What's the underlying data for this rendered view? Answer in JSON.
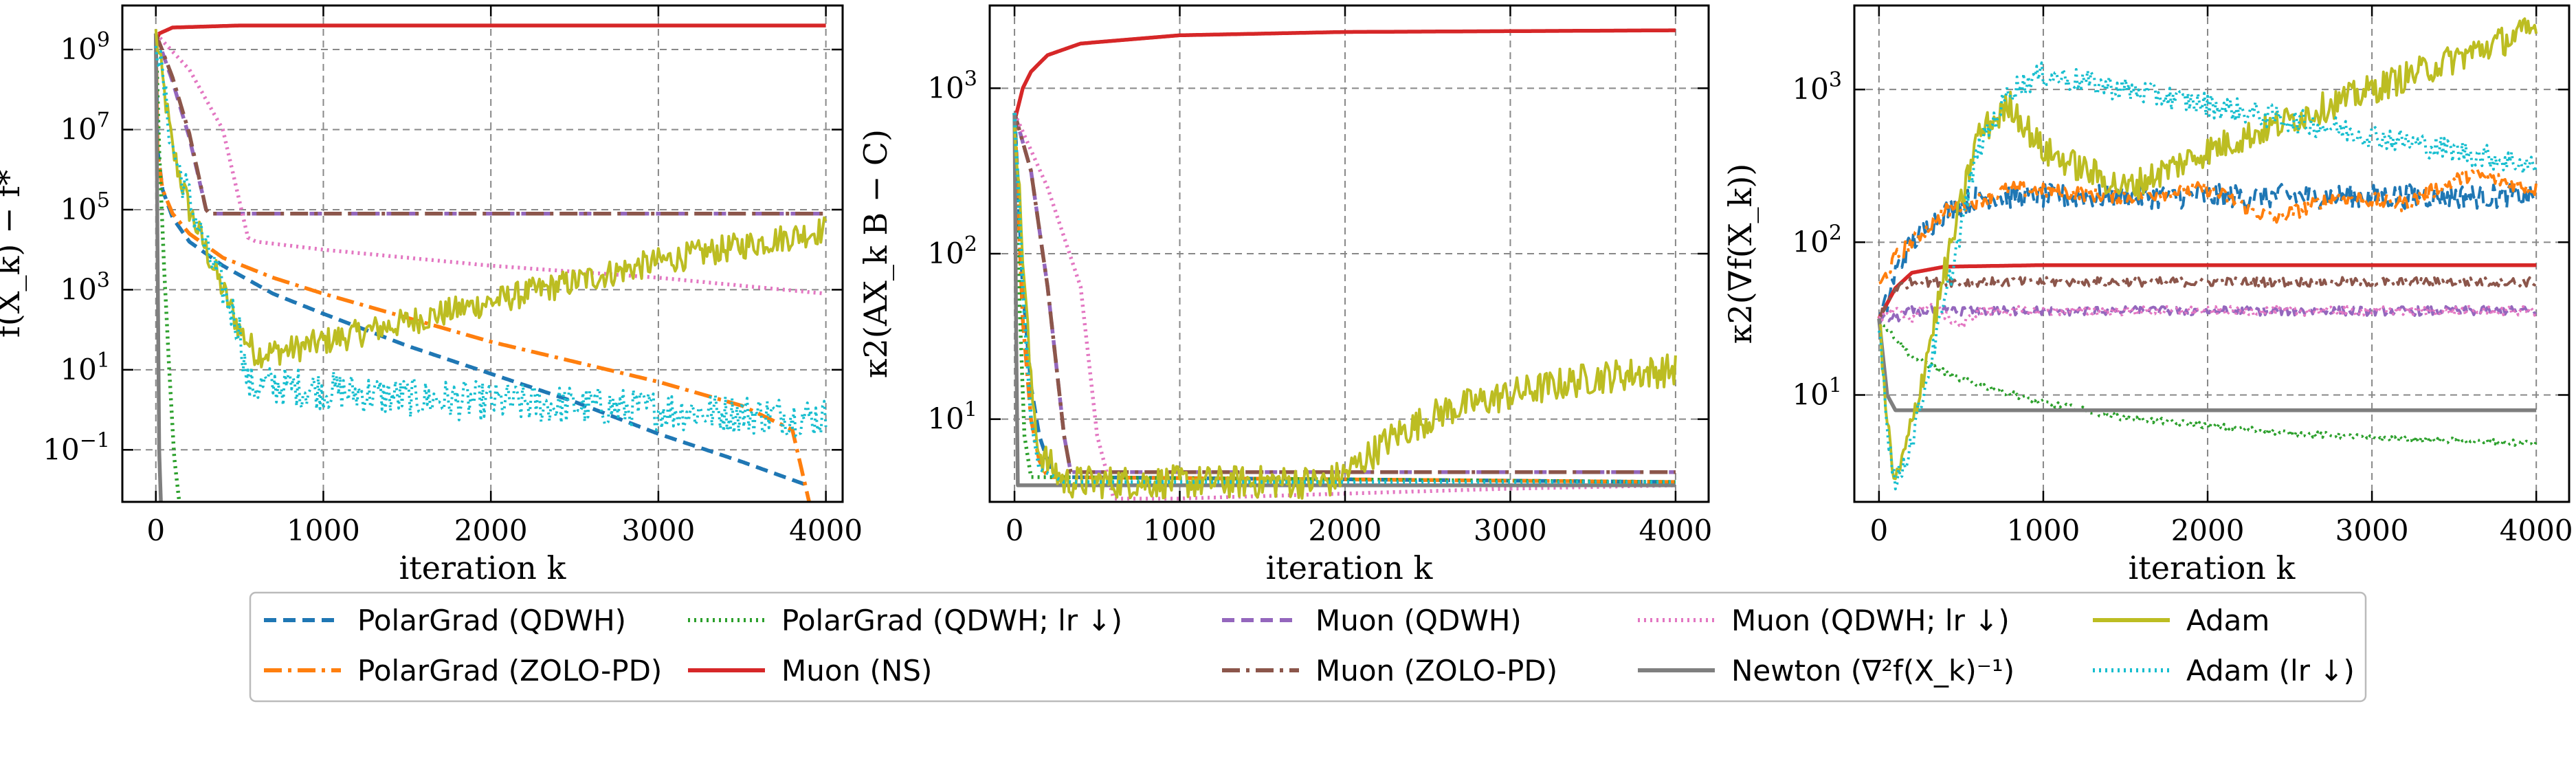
{
  "chart_data": [
    {
      "type": "line",
      "yscale": "log",
      "xlim": [
        -200,
        4100
      ],
      "ylim_exp": [
        -2.3,
        10.1
      ],
      "xticks": [
        0,
        1000,
        2000,
        3000,
        4000
      ],
      "xtick_labels": [
        "0",
        "1000",
        "2000",
        "3000",
        "4000"
      ],
      "yticks_exp": [
        -1,
        1,
        3,
        5,
        7,
        9
      ],
      "ytick_labels": [
        "10",
        "10",
        "10",
        "10",
        "10",
        "10"
      ],
      "ytick_sup": [
        "−1",
        "1",
        "3",
        "5",
        "7",
        "9"
      ],
      "xlabel": "iteration k",
      "ylabel": "f(X_k) − f*",
      "grid": true,
      "series": [
        {
          "key": "pg_qdwh",
          "x": [
            0,
            10,
            40,
            100,
            200,
            400,
            700,
            1000,
            1500,
            2000,
            2500,
            3000,
            3500,
            3900
          ],
          "log10y": [
            9.4,
            6.5,
            5.5,
            4.8,
            4.2,
            3.6,
            2.9,
            2.4,
            1.6,
            0.9,
            0.2,
            -0.6,
            -1.3,
            -1.9
          ]
        },
        {
          "key": "pg_zolo",
          "x": [
            0,
            10,
            40,
            100,
            200,
            400,
            700,
            1000,
            1500,
            2000,
            2500,
            3000,
            3500,
            3800,
            3900
          ],
          "log10y": [
            9.4,
            6.4,
            5.5,
            4.9,
            4.4,
            3.8,
            3.3,
            2.9,
            2.3,
            1.7,
            1.2,
            0.7,
            0.1,
            -0.5,
            -2.3
          ]
        },
        {
          "key": "pg_qdwh_lr",
          "x": [
            0,
            20,
            50,
            80,
            110,
            140
          ],
          "log10y": [
            9.4,
            6.5,
            3.5,
            1.0,
            -1.2,
            -2.3
          ]
        },
        {
          "key": "muon_ns",
          "x": [
            0,
            20,
            100,
            500,
            1000,
            4000
          ],
          "log10y": [
            9.2,
            9.4,
            9.55,
            9.6,
            9.6,
            9.6
          ]
        },
        {
          "key": "muon_qdwh",
          "x": [
            0,
            100,
            200,
            300,
            320,
            4000
          ],
          "log10y": [
            9.4,
            8.2,
            6.8,
            5.0,
            4.9,
            4.9
          ]
        },
        {
          "key": "muon_zolo",
          "x": [
            0,
            100,
            200,
            300,
            320,
            4000
          ],
          "log10y": [
            9.4,
            8.3,
            6.9,
            5.0,
            4.9,
            4.9
          ]
        },
        {
          "key": "muon_qdwh_lr",
          "x": [
            0,
            200,
            400,
            550,
            600,
            1000,
            2000,
            3000,
            4000
          ],
          "log10y": [
            9.4,
            8.5,
            7.0,
            4.3,
            4.2,
            4.0,
            3.6,
            3.3,
            2.9
          ]
        },
        {
          "key": "newton",
          "x": [
            0,
            10,
            20,
            30
          ],
          "log10y": [
            9.4,
            4.0,
            -1.0,
            -2.3
          ]
        },
        {
          "key": "adam",
          "x": [
            0,
            100,
            200,
            300,
            400,
            500,
            600,
            800,
            1000,
            1500,
            2000,
            2500,
            3000,
            3500,
            4000
          ],
          "log10y": [
            9.4,
            6.5,
            5.0,
            4.0,
            3.0,
            2.0,
            1.4,
            1.5,
            1.7,
            2.2,
            2.7,
            3.2,
            3.7,
            4.1,
            4.5
          ],
          "noise": 0.35
        },
        {
          "key": "adam_lr",
          "x": [
            0,
            100,
            300,
            500,
            550,
            700,
            1000,
            1500,
            2000,
            2500,
            3000,
            3500,
            4000
          ],
          "log10y": [
            9.4,
            6.5,
            4.0,
            2.0,
            0.6,
            0.6,
            0.5,
            0.3,
            0.2,
            0.1,
            0.0,
            -0.1,
            -0.2
          ],
          "noise": 0.5
        }
      ]
    },
    {
      "type": "line",
      "yscale": "log",
      "xlim": [
        -150,
        4200
      ],
      "ylim_exp": [
        0.5,
        3.5
      ],
      "xticks": [
        0,
        1000,
        2000,
        3000,
        4000
      ],
      "xtick_labels": [
        "0",
        "1000",
        "2000",
        "3000",
        "4000"
      ],
      "yticks_exp": [
        1,
        2,
        3
      ],
      "ytick_labels": [
        "10",
        "10",
        "10"
      ],
      "ytick_sup": [
        "1",
        "2",
        "3"
      ],
      "xlabel": "iteration k",
      "ylabel": "κ2(AX_k B − C)",
      "grid": true,
      "series": [
        {
          "key": "pg_qdwh",
          "x": [
            0,
            50,
            100,
            150,
            200,
            250,
            4000
          ],
          "log10y": [
            2.85,
            1.8,
            1.2,
            0.9,
            0.75,
            0.65,
            0.62
          ]
        },
        {
          "key": "pg_zolo",
          "x": [
            0,
            50,
            100,
            150,
            200,
            4000
          ],
          "log10y": [
            2.85,
            1.6,
            1.0,
            0.75,
            0.65,
            0.62
          ]
        },
        {
          "key": "pg_qdwh_lr",
          "x": [
            0,
            30,
            60,
            100,
            4000
          ],
          "log10y": [
            2.85,
            1.7,
            0.9,
            0.65,
            0.62
          ]
        },
        {
          "key": "muon_ns",
          "x": [
            0,
            50,
            100,
            200,
            400,
            1000,
            2000,
            4000
          ],
          "log10y": [
            2.8,
            3.0,
            3.1,
            3.2,
            3.27,
            3.32,
            3.34,
            3.35
          ]
        },
        {
          "key": "muon_qdwh",
          "x": [
            0,
            100,
            200,
            300,
            340,
            4000
          ],
          "log10y": [
            2.85,
            2.5,
            1.8,
            0.9,
            0.68,
            0.68
          ]
        },
        {
          "key": "muon_zolo",
          "x": [
            0,
            100,
            200,
            300,
            340,
            4000
          ],
          "log10y": [
            2.85,
            2.5,
            1.8,
            0.9,
            0.68,
            0.68
          ]
        },
        {
          "key": "muon_qdwh_lr",
          "x": [
            0,
            200,
            400,
            500,
            600,
            1000,
            2000,
            3000,
            4000
          ],
          "log10y": [
            2.85,
            2.4,
            1.8,
            0.9,
            0.52,
            0.52,
            0.55,
            0.58,
            0.6
          ]
        },
        {
          "key": "newton",
          "x": [
            0,
            10,
            20,
            4000
          ],
          "log10y": [
            2.85,
            1.5,
            0.6,
            0.6
          ]
        },
        {
          "key": "adam",
          "x": [
            0,
            50,
            100,
            150,
            300,
            1000,
            1900,
            2000,
            2300,
            2600,
            3000,
            3500,
            4000
          ],
          "log10y": [
            2.85,
            2.0,
            1.2,
            0.8,
            0.62,
            0.62,
            0.62,
            0.67,
            0.9,
            1.05,
            1.15,
            1.25,
            1.3
          ],
          "noise": 0.1
        },
        {
          "key": "adam_lr",
          "x": [
            0,
            50,
            100,
            150,
            300,
            4000
          ],
          "log10y": [
            2.85,
            1.8,
            1.0,
            0.7,
            0.62,
            0.62
          ]
        }
      ]
    },
    {
      "type": "line",
      "yscale": "log",
      "xlim": [
        -150,
        4200
      ],
      "ylim_exp": [
        0.3,
        3.55
      ],
      "xticks": [
        0,
        1000,
        2000,
        3000,
        4000
      ],
      "xtick_labels": [
        "0",
        "1000",
        "2000",
        "3000",
        "4000"
      ],
      "yticks_exp": [
        1,
        2,
        3
      ],
      "ytick_labels": [
        "10",
        "10",
        "10"
      ],
      "ytick_sup": [
        "1",
        "2",
        "3"
      ],
      "xlabel": "iteration k",
      "ylabel": "κ2(∇f(X_k))",
      "grid": true,
      "series": [
        {
          "key": "pg_qdwh",
          "x": [
            0,
            50,
            100,
            200,
            400,
            600,
            1000,
            2000,
            3000,
            4000
          ],
          "log10y": [
            1.5,
            1.6,
            1.8,
            2.0,
            2.2,
            2.3,
            2.3,
            2.3,
            2.3,
            2.3
          ],
          "noise": 0.08
        },
        {
          "key": "pg_zolo",
          "x": [
            0,
            100,
            200,
            400,
            800,
            1500,
            2000,
            2400,
            2800,
            3200,
            3600,
            4000
          ],
          "log10y": [
            1.7,
            1.9,
            2.0,
            2.2,
            2.35,
            2.3,
            2.35,
            2.15,
            2.3,
            2.25,
            2.45,
            2.35
          ],
          "noise": 0.05
        },
        {
          "key": "pg_qdwh_lr",
          "x": [
            0,
            200,
            500,
            1000,
            1500,
            2000,
            2500,
            3000,
            3500,
            4000
          ],
          "log10y": [
            1.5,
            1.25,
            1.1,
            0.95,
            0.85,
            0.8,
            0.75,
            0.72,
            0.7,
            0.68
          ],
          "noise": 0.02
        },
        {
          "key": "muon_ns",
          "x": [
            0,
            100,
            200,
            400,
            1000,
            4000
          ],
          "log10y": [
            1.5,
            1.7,
            1.8,
            1.84,
            1.85,
            1.85
          ]
        },
        {
          "key": "muon_qdwh",
          "x": [
            0,
            100,
            200,
            4000
          ],
          "log10y": [
            1.5,
            1.5,
            1.55,
            1.55
          ],
          "noise": 0.03
        },
        {
          "key": "muon_zolo",
          "x": [
            0,
            50,
            100,
            200,
            300,
            4000
          ],
          "log10y": [
            1.5,
            1.6,
            1.7,
            1.74,
            1.74,
            1.74
          ],
          "noise": 0.03
        },
        {
          "key": "muon_qdwh_lr",
          "x": [
            0,
            100,
            200,
            300,
            500,
            600,
            4000
          ],
          "log10y": [
            1.5,
            1.55,
            1.5,
            1.6,
            1.45,
            1.55,
            1.55
          ],
          "noise": 0.03
        },
        {
          "key": "newton",
          "x": [
            0,
            50,
            100,
            4000
          ],
          "log10y": [
            1.5,
            1.0,
            0.9,
            0.9
          ]
        },
        {
          "key": "adam",
          "x": [
            0,
            50,
            100,
            200,
            400,
            600,
            800,
            1000,
            1200,
            1500,
            2000,
            2500,
            3000,
            3500,
            4000
          ],
          "log10y": [
            1.5,
            0.8,
            0.4,
            0.8,
            1.8,
            2.7,
            2.9,
            2.6,
            2.5,
            2.35,
            2.6,
            2.8,
            3.0,
            3.2,
            3.4
          ],
          "noise": 0.1
        },
        {
          "key": "adam_lr",
          "x": [
            0,
            50,
            100,
            200,
            400,
            600,
            800,
            1000,
            1500,
            2000,
            2500,
            3000,
            3500,
            4000
          ],
          "log10y": [
            1.5,
            0.8,
            0.4,
            0.7,
            1.6,
            2.6,
            3.0,
            3.1,
            3.0,
            2.9,
            2.8,
            2.7,
            2.6,
            2.5
          ],
          "noise": 0.08
        }
      ]
    }
  ],
  "styles": {
    "pg_qdwh": {
      "color": "#1f77b4",
      "dash": "18 10"
    },
    "pg_zolo": {
      "color": "#ff7f0e",
      "dash": "26 9 5 9"
    },
    "pg_qdwh_lr": {
      "color": "#2ca02c",
      "dash": "3 6"
    },
    "muon_ns": {
      "color": "#d62728",
      "dash": ""
    },
    "muon_qdwh": {
      "color": "#9467bd",
      "dash": "18 10"
    },
    "muon_zolo": {
      "color": "#8c564b",
      "dash": "26 9 5 9"
    },
    "muon_qdwh_lr": {
      "color": "#e377c2",
      "dash": "3 6"
    },
    "newton": {
      "color": "#7f7f7f",
      "dash": ""
    },
    "adam": {
      "color": "#bcbd22",
      "dash": ""
    },
    "adam_lr": {
      "color": "#17becf",
      "dash": "3 6"
    }
  },
  "legend": {
    "placement": "bottom-center",
    "entries": [
      {
        "key": "pg_qdwh",
        "label": "PolarGrad (QDWH)"
      },
      {
        "key": "pg_zolo",
        "label": "PolarGrad (ZOLO-PD)"
      },
      {
        "key": "pg_qdwh_lr",
        "label": "PolarGrad (QDWH; lr ↓)"
      },
      {
        "key": "muon_ns",
        "label": "Muon (NS)"
      },
      {
        "key": "muon_qdwh",
        "label": "Muon (QDWH)"
      },
      {
        "key": "muon_zolo",
        "label": "Muon (ZOLO-PD)"
      },
      {
        "key": "muon_qdwh_lr",
        "label": "Muon (QDWH; lr ↓)"
      },
      {
        "key": "newton",
        "label": "Newton (∇²f(X_k)⁻¹)"
      },
      {
        "key": "adam",
        "label": "Adam"
      },
      {
        "key": "adam_lr",
        "label": "Adam (lr ↓)"
      }
    ]
  }
}
